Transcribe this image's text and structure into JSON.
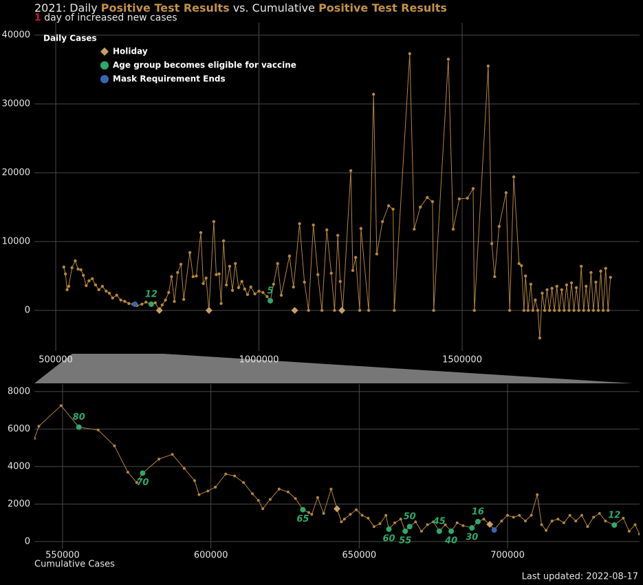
{
  "header": {
    "title_parts": [
      {
        "text": "2021: Daily "
      },
      {
        "text": "Positive Test Results",
        "highlight": true
      },
      {
        "text": " vs. Cumulative "
      },
      {
        "text": "Positive Test Results",
        "highlight": true
      }
    ],
    "highlight_color": "#c39248",
    "subtitle": {
      "count": 1,
      "count_color": "#d0103a",
      "text": " day of increased new cases"
    }
  },
  "footer": {
    "x_label": "Cumulative Cases",
    "updated": "Last updated: 2022-08-17"
  },
  "chart_data": [
    {
      "type": "line",
      "y_label": "Daily Cases",
      "legend": "top-left",
      "xlim": [
        447500,
        1936500
      ],
      "ylim": [
        -5900,
        41800
      ],
      "xticks": [
        500000,
        1000000,
        1500000
      ],
      "yticks": [
        0,
        10000,
        20000,
        30000,
        40000
      ],
      "grid": true,
      "x": [
        520000,
        524000,
        528000,
        532000,
        540000,
        548000,
        555000,
        562000,
        568000,
        575000,
        582000,
        590000,
        598000,
        606000,
        615000,
        624000,
        632000,
        640000,
        650000,
        660000,
        670000,
        680000,
        690000,
        700000,
        712000,
        722000,
        735000,
        745000,
        755000,
        762000,
        770000,
        778000,
        785000,
        792000,
        800000,
        808000,
        815000,
        830000,
        838000,
        846000,
        857000,
        863000,
        870000,
        877000,
        889000,
        895000,
        902000,
        907000,
        913000,
        920000,
        928000,
        935000,
        942000,
        950000,
        958000,
        965000,
        972000,
        980000,
        990000,
        1000000,
        1010000,
        1020000,
        1028000,
        1036000,
        1046000,
        1055000,
        1075000,
        1085000,
        1100000,
        1112000,
        1122000,
        1134000,
        1145000,
        1155000,
        1167000,
        1178000,
        1186000,
        1194000,
        1200000,
        1206000,
        1226000,
        1231000,
        1238000,
        1248000,
        1251000,
        1270000,
        1282000,
        1290000,
        1304000,
        1319000,
        1330000,
        1333000,
        1371000,
        1382000,
        1397000,
        1414000,
        1427000,
        1430000,
        1466000,
        1478000,
        1493000,
        1513000,
        1527000,
        1530000,
        1564000,
        1573000,
        1580000,
        1591000,
        1608000,
        1617000,
        1627000,
        1640000,
        1646000,
        1652000,
        1656000,
        1662000,
        1669000,
        1674000,
        1680000,
        1686000,
        1691000,
        1697000,
        1703000,
        1709000,
        1715000,
        1721000,
        1727000,
        1733000,
        1739000,
        1745000,
        1751000,
        1757000,
        1763000,
        1769000,
        1775000,
        1781000,
        1787000,
        1793000,
        1799000,
        1805000,
        1811000,
        1817000,
        1823000,
        1829000,
        1835000,
        1841000,
        1847000,
        1853000,
        1859000,
        1865000
      ],
      "series": [
        {
          "color": "#b5863a",
          "values": [
            6300,
            5300,
            3000,
            3500,
            6200,
            7200,
            6000,
            5900,
            5100,
            3600,
            4300,
            4600,
            3700,
            3000,
            3500,
            2800,
            2500,
            1800,
            2200,
            1500,
            1300,
            1000,
            900,
            700,
            900,
            1200,
            900,
            1100,
            0,
            800,
            1500,
            2600,
            4900,
            1300,
            5500,
            6700,
            1600,
            8400,
            4900,
            5000,
            11300,
            3900,
            4700,
            0,
            12900,
            5200,
            5300,
            1000,
            10100,
            3700,
            6400,
            2900,
            6800,
            3300,
            4200,
            3100,
            2300,
            3400,
            2400,
            2800,
            2600,
            2000,
            1400,
            3800,
            6800,
            2200,
            7900,
            3400,
            12600,
            4100,
            0,
            12400,
            5200,
            0,
            11700,
            5400,
            0,
            10900,
            4200,
            0,
            20300,
            5800,
            7700,
            0,
            11900,
            0,
            31400,
            8200,
            12900,
            15200,
            14700,
            0,
            37300,
            11800,
            15000,
            16400,
            15800,
            0,
            36500,
            11800,
            16200,
            16300,
            17700,
            0,
            35500,
            9700,
            4900,
            12200,
            17100,
            0,
            19400,
            6800,
            6500,
            0,
            5000,
            0,
            3800,
            0,
            1500,
            0,
            -4000,
            2500,
            0,
            3000,
            0,
            3200,
            0,
            3500,
            0,
            3000,
            0,
            3700,
            0,
            4000,
            0,
            3300,
            0,
            6400,
            0,
            3500,
            0,
            5500,
            0,
            4100,
            0,
            5700,
            0,
            6100,
            0,
            4800
          ]
        }
      ],
      "events": [
        {
          "name": "Holiday",
          "color": "#c9a063",
          "shape": "diamond",
          "x": [
            755000,
            877000,
            1088000,
            1204000
          ],
          "y": [
            0,
            0,
            0,
            0
          ]
        },
        {
          "name": "Age group becomes eligible for vaccine",
          "color": "#2fa86b",
          "shape": "circle",
          "x": [
            735000,
            1028000
          ],
          "y": [
            900,
            1400
          ],
          "labels": [
            12,
            5
          ]
        },
        {
          "name": "Mask Requirement Ends",
          "color": "#3a66b0",
          "shape": "circle",
          "x": [
            695000
          ],
          "y": [
            900
          ]
        }
      ]
    },
    {
      "type": "line",
      "xlim": [
        540500,
        744500
      ],
      "ylim": [
        -370,
        8400
      ],
      "xticks": [
        550000,
        600000,
        650000,
        700000
      ],
      "yticks": [
        0,
        2000,
        4000,
        6000,
        8000
      ],
      "grid": true,
      "x": [
        540500,
        542000,
        549500,
        555500,
        562000,
        567500,
        572000,
        575000,
        577000,
        582500,
        587000,
        591000,
        594500,
        596000,
        599000,
        601500,
        605000,
        608000,
        611000,
        614000,
        616000,
        617500,
        620000,
        623000,
        626000,
        628500,
        631000,
        633000,
        634000,
        636000,
        638000,
        640500,
        642500,
        644000,
        645000,
        647000,
        649000,
        651000,
        653000,
        655000,
        657000,
        659000,
        660000,
        662000,
        664000,
        665500,
        667000,
        669000,
        671000,
        673000,
        675000,
        677000,
        679000,
        681000,
        683000,
        685000,
        688000,
        690000,
        692000,
        694000,
        695500,
        698000,
        700000,
        702000,
        704000,
        706000,
        708000,
        710000,
        711500,
        713000,
        715000,
        717000,
        719000,
        721000,
        723000,
        725000,
        727000,
        729000,
        731000,
        733000,
        736000,
        739000,
        741000,
        743000,
        744500
      ],
      "series": [
        {
          "color": "#b5863a",
          "values": [
            5500,
            6150,
            7250,
            6100,
            5950,
            5100,
            3700,
            3150,
            3650,
            4400,
            4650,
            3900,
            3250,
            2500,
            2700,
            2900,
            3600,
            3500,
            3150,
            2550,
            2200,
            1750,
            2250,
            2800,
            2650,
            2300,
            1700,
            1550,
            1450,
            2350,
            1500,
            2800,
            1750,
            1050,
            1200,
            1450,
            1700,
            1400,
            1250,
            800,
            950,
            1400,
            660,
            1000,
            1200,
            550,
            800,
            1050,
            550,
            900,
            1050,
            550,
            900,
            550,
            1000,
            850,
            730,
            1064,
            1200,
            920,
            620,
            1100,
            1400,
            1300,
            1400,
            1100,
            1400,
            2500,
            900,
            600,
            1100,
            1200,
            1000,
            1400,
            1100,
            1400,
            800,
            1300,
            1500,
            1100,
            880,
            1250,
            550,
            900,
            400
          ]
        }
      ],
      "events": [
        {
          "color": "#c9a063",
          "shape": "diamond",
          "x": [
            642500,
            694000
          ],
          "y": [
            1750,
            920
          ]
        },
        {
          "color": "#2fa86b",
          "shape": "circle",
          "x": [
            555500,
            577000,
            631000,
            660000,
            665500,
            667000,
            677000,
            681000,
            688000,
            690000,
            736000
          ],
          "y": [
            6100,
            3650,
            1700,
            660,
            550,
            800,
            550,
            550,
            730,
            1064,
            880
          ],
          "labels": [
            80,
            70,
            65,
            60,
            55,
            50,
            45,
            40,
            30,
            16,
            12
          ]
        },
        {
          "color": "#3a66b0",
          "shape": "circle",
          "x": [
            695500
          ],
          "y": [
            620
          ]
        }
      ]
    }
  ]
}
